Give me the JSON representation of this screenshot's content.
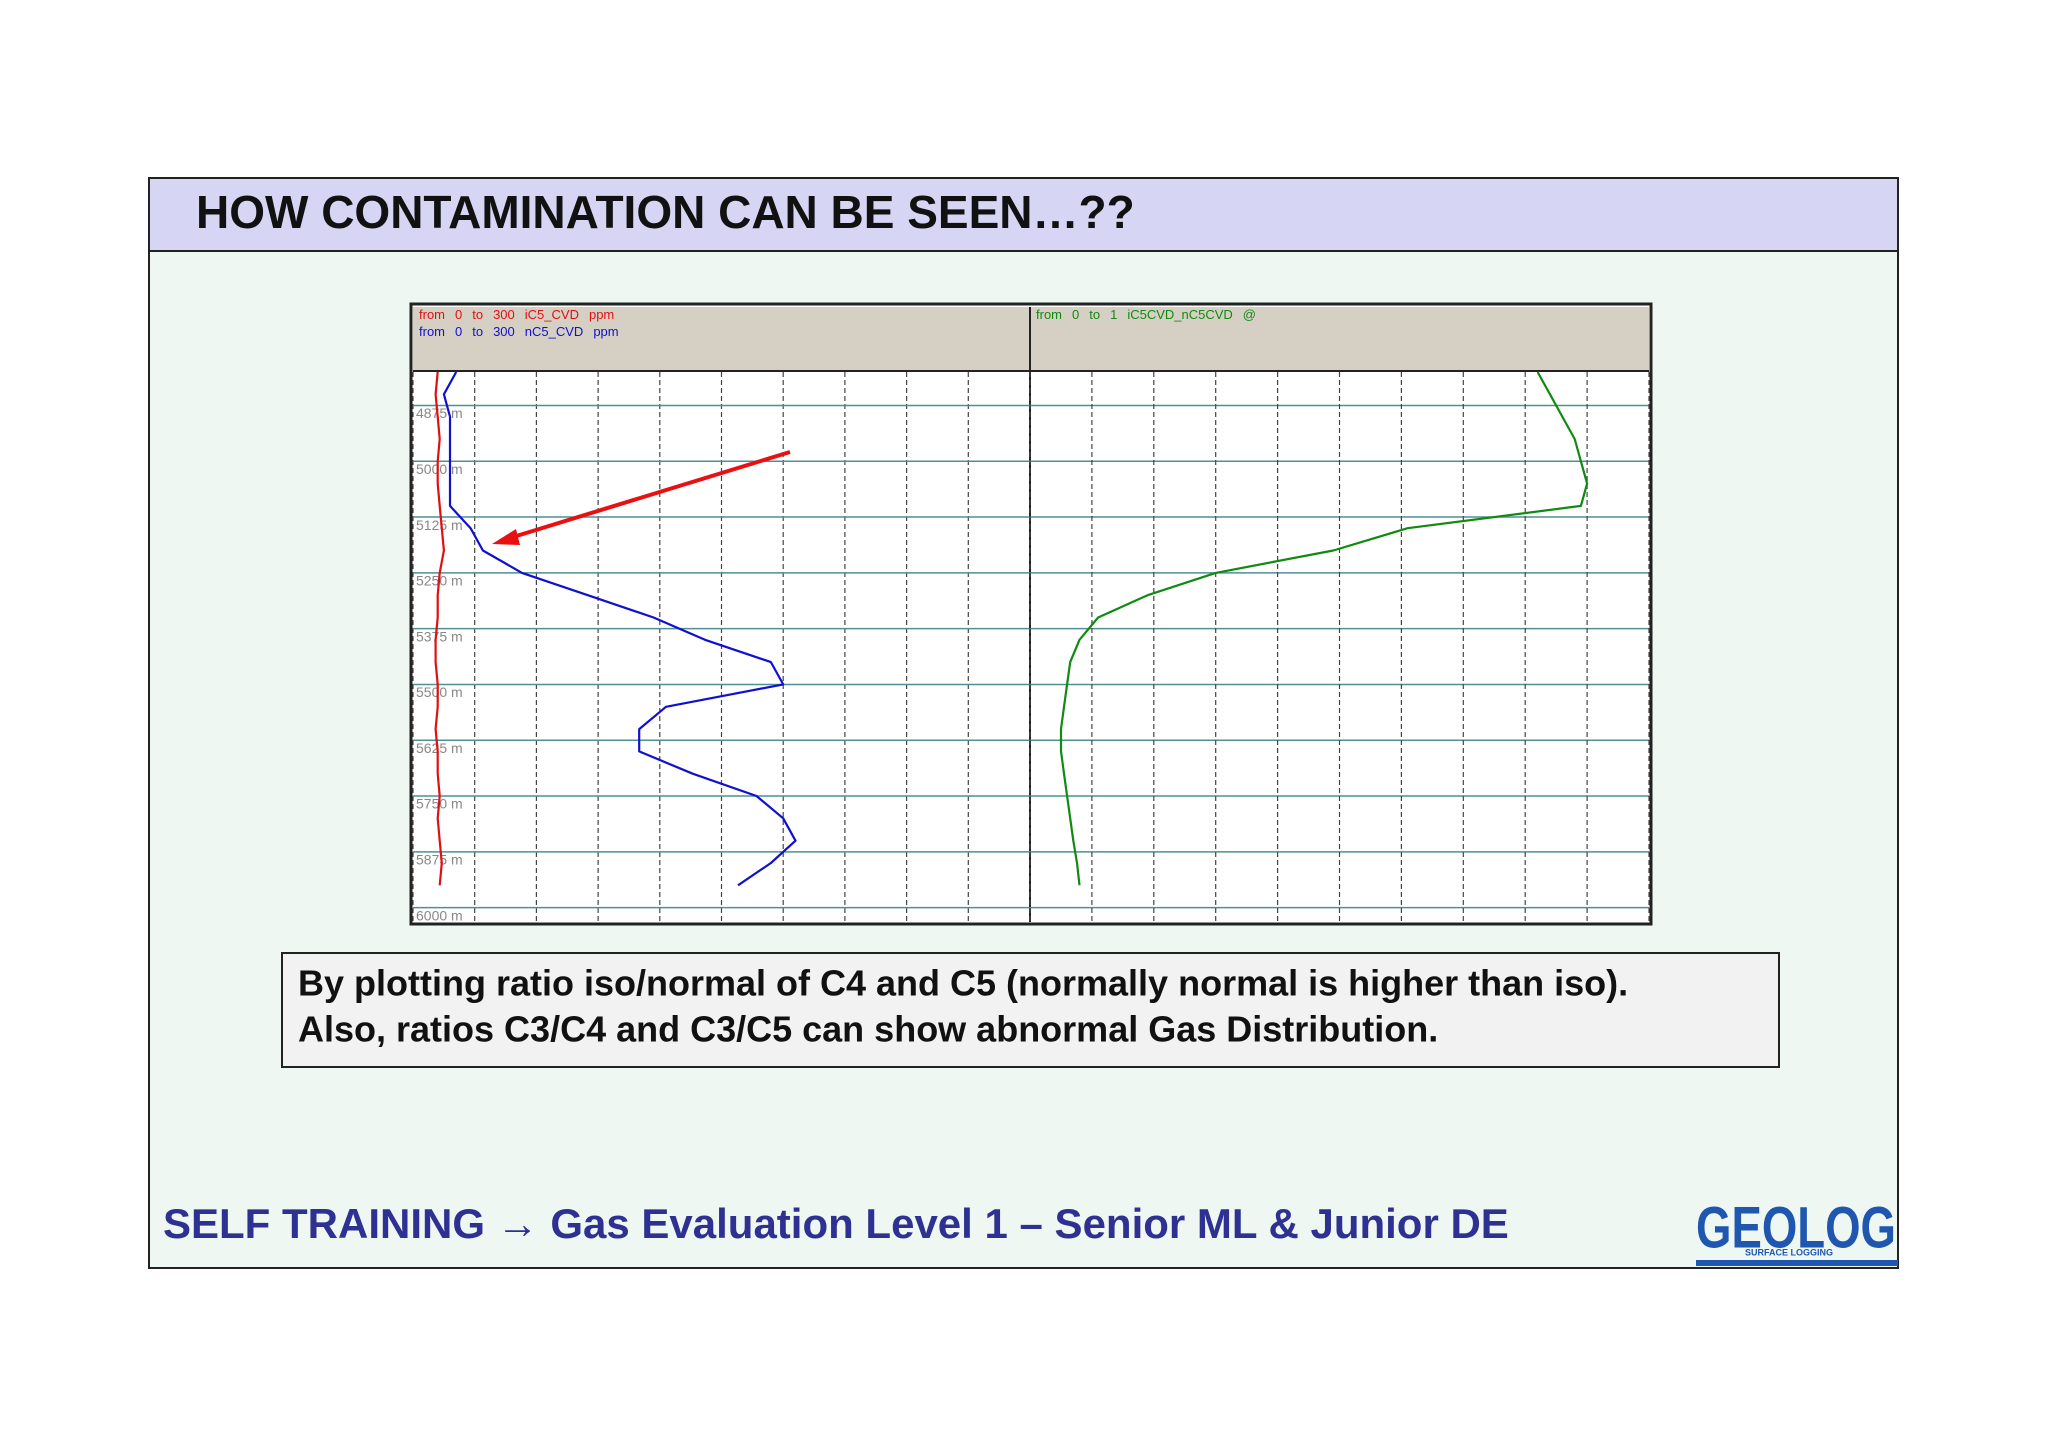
{
  "header": {
    "title": "HOW CONTAMINATION CAN BE SEEN…??"
  },
  "chart_data": [
    {
      "type": "line",
      "range_words": [
        "from",
        "to"
      ],
      "x": [
        4800,
        4850,
        4900,
        4950,
        5000,
        5050,
        5100,
        5150,
        5200,
        5250,
        5300,
        5350,
        5400,
        5450,
        5500,
        5550,
        5600,
        5650,
        5700,
        5750,
        5800,
        5850,
        5900,
        5950
      ],
      "ylim": [
        4800,
        6030
      ],
      "yticks": [
        {
          "value": 4875,
          "label": "4875 m"
        },
        {
          "value": 5000,
          "label": "5000 m"
        },
        {
          "value": 5125,
          "label": "5125 m"
        },
        {
          "value": 5250,
          "label": "5250 m"
        },
        {
          "value": 5375,
          "label": "5375 m"
        },
        {
          "value": 5500,
          "label": "5500 m"
        },
        {
          "value": 5625,
          "label": "5625 m"
        },
        {
          "value": 5750,
          "label": "5750 m"
        },
        {
          "value": 5875,
          "label": "5875 m"
        },
        {
          "value": 6000,
          "label": "6000 m"
        }
      ],
      "xlim": [
        0,
        300
      ],
      "xticks": [
        0,
        30,
        60,
        90,
        120,
        150,
        180,
        210,
        240,
        270,
        300
      ],
      "series": [
        {
          "name": "iC5_CVD",
          "unit": "ppm",
          "color": "#e01010",
          "values": [
            12,
            11,
            12,
            13,
            12,
            12,
            13,
            14,
            15,
            13,
            12,
            12,
            11,
            11,
            12,
            12,
            11,
            12,
            12,
            13,
            12,
            13,
            14,
            13
          ]
        },
        {
          "name": "nC5_CVD",
          "unit": "ppm",
          "color": "#1010d0",
          "values": [
            21,
            15,
            18,
            18,
            18,
            18,
            18,
            28,
            34,
            53,
            85,
            117,
            142,
            174,
            180,
            123,
            110,
            110,
            136,
            167,
            180,
            186,
            174,
            158
          ]
        }
      ]
    },
    {
      "type": "line",
      "range_words": [
        "from",
        "to"
      ],
      "x": [
        4800,
        4850,
        4900,
        4950,
        5000,
        5050,
        5100,
        5150,
        5200,
        5250,
        5300,
        5350,
        5400,
        5450,
        5500,
        5550,
        5600,
        5650,
        5700,
        5750,
        5800,
        5850,
        5900,
        5950
      ],
      "ylim": [
        4800,
        6030
      ],
      "xlim": [
        0,
        1
      ],
      "xticks": [
        0,
        0.1,
        0.2,
        0.3,
        0.4,
        0.5,
        0.6,
        0.7,
        0.8,
        0.9,
        1
      ],
      "series": [
        {
          "name": "iC5CVD_nC5CVD",
          "unit": "@",
          "color": "#108a10",
          "values": [
            0.82,
            0.84,
            0.86,
            0.88,
            0.89,
            0.9,
            0.89,
            0.61,
            0.49,
            0.3,
            0.19,
            0.11,
            0.08,
            0.065,
            0.06,
            0.055,
            0.05,
            0.05,
            0.055,
            0.06,
            0.065,
            0.07,
            0.076,
            0.08
          ]
        }
      ]
    }
  ],
  "note": {
    "lines": [
      "By plotting ratio iso/normal of C4 and C5 (normally normal is higher than iso).",
      "Also, ratios C3/C4 and C3/C5 can show abnormal Gas Distribution."
    ]
  },
  "footer": {
    "text": "SELF TRAINING → Gas Evaluation Level 1 – Senior ML & Junior DE",
    "logo": "GEOLOG",
    "logo_sub": "SURFACE LOGGING"
  }
}
